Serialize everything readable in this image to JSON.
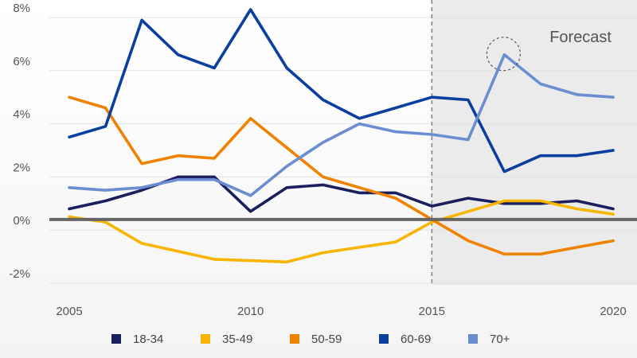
{
  "chart_data": {
    "type": "line",
    "title": "",
    "xlabel": "",
    "ylabel": "",
    "x": [
      2005,
      2006,
      2007,
      2008,
      2009,
      2010,
      2011,
      2012,
      2013,
      2014,
      2015,
      2016,
      2017,
      2018,
      2019,
      2020
    ],
    "xlim": [
      2005,
      2020
    ],
    "ylim": [
      -2,
      8
    ],
    "x_ticks": [
      "2005",
      "2010",
      "2015",
      "2020"
    ],
    "y_ticks": [
      "8%",
      "6%",
      "4%",
      "2%",
      "0%",
      "-2%"
    ],
    "y_tick_values": [
      8,
      6,
      4,
      2,
      0,
      -2
    ],
    "baseline": 0.4,
    "grid": "horizontal",
    "legend_position": "bottom",
    "forecast": {
      "label": "Forecast",
      "start": 2015,
      "end": 2020
    },
    "highlight_circle": {
      "x": 2017,
      "y": 6.6
    },
    "series": [
      {
        "name": "18-34",
        "color": "#1a1f5e",
        "values": [
          0.8,
          1.1,
          1.5,
          2.0,
          2.0,
          0.7,
          1.6,
          1.7,
          1.4,
          1.4,
          0.9,
          1.2,
          1.0,
          1.0,
          1.1,
          0.8
        ]
      },
      {
        "name": "35-49",
        "color": "#f7b500",
        "values": [
          0.5,
          0.3,
          -0.5,
          -0.8,
          -1.1,
          -1.15,
          -1.2,
          -0.85,
          -0.65,
          -0.45,
          0.3,
          0.7,
          1.1,
          1.1,
          0.8,
          0.6
        ]
      },
      {
        "name": "50-59",
        "color": "#ef8200",
        "values": [
          5.0,
          4.6,
          2.5,
          2.8,
          2.7,
          4.2,
          3.1,
          2.0,
          1.6,
          1.2,
          0.4,
          -0.4,
          -0.9,
          -0.9,
          -0.65,
          -0.4
        ]
      },
      {
        "name": "60-69",
        "color": "#0a3fa0",
        "values": [
          3.5,
          3.9,
          7.9,
          6.6,
          6.1,
          8.3,
          6.1,
          4.9,
          4.2,
          4.6,
          5.0,
          4.9,
          2.2,
          2.8,
          2.8,
          3.0
        ]
      },
      {
        "name": "70+",
        "color": "#6b8ed1",
        "values": [
          1.6,
          1.5,
          1.6,
          1.9,
          1.9,
          1.3,
          2.4,
          3.3,
          4.0,
          3.7,
          3.6,
          3.4,
          6.6,
          5.5,
          5.1,
          5.0
        ]
      }
    ]
  }
}
